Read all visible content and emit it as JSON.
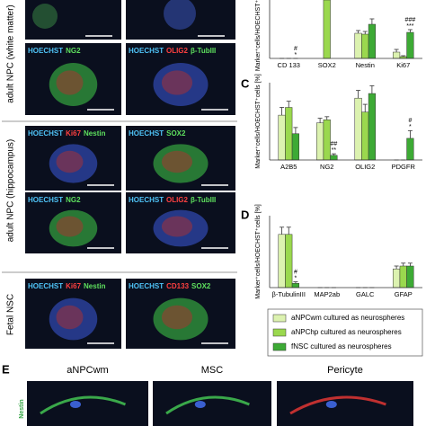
{
  "figure": {
    "panel_letters": {
      "c": "C",
      "d": "D",
      "e": "E"
    },
    "row_groups": [
      "adult NPC (white matter)",
      "adult NPC (hippocampus)",
      "Fetal NSC"
    ],
    "image_rows": [
      [
        [
          {
            "text": "HOECHST",
            "color": "#4fc3f7"
          },
          {
            "text": "NG2",
            "color": "#5ee05e"
          }
        ],
        [
          {
            "text": "HOECHST",
            "color": "#4fc3f7"
          },
          {
            "text": "OLIG2",
            "color": "#ff4040"
          },
          {
            "text": "β-TubIII",
            "color": "#5ee05e"
          }
        ]
      ],
      [
        [
          {
            "text": "HOECHST",
            "color": "#4fc3f7"
          },
          {
            "text": "Ki67",
            "color": "#ff4040"
          },
          {
            "text": "Nestin",
            "color": "#5ee05e"
          }
        ],
        [
          {
            "text": "HOECHST",
            "color": "#4fc3f7"
          },
          {
            "text": "SOX2",
            "color": "#5ee05e"
          }
        ]
      ],
      [
        [
          {
            "text": "HOECHST",
            "color": "#4fc3f7"
          },
          {
            "text": "NG2",
            "color": "#5ee05e"
          }
        ],
        [
          {
            "text": "HOECHST",
            "color": "#4fc3f7"
          },
          {
            "text": "OLIG2",
            "color": "#ff4040"
          },
          {
            "text": "β-TubIII",
            "color": "#5ee05e"
          }
        ]
      ],
      [
        [
          {
            "text": "HOECHST",
            "color": "#4fc3f7"
          },
          {
            "text": "Ki67",
            "color": "#ff4040"
          },
          {
            "text": "Nestin",
            "color": "#5ee05e"
          }
        ],
        [
          {
            "text": "HOECHST",
            "color": "#4fc3f7"
          },
          {
            "text": "CD133",
            "color": "#ff4040"
          },
          {
            "text": "SOX2",
            "color": "#5ee05e"
          }
        ]
      ]
    ],
    "bottom_titles": [
      "aNPCwm",
      "MSC",
      "Pericyte"
    ],
    "bottom_side_label": "Nestin"
  },
  "chart_data": [
    {
      "type": "bar",
      "y_label": "Marker⁺cells/HOECHST⁺cells",
      "categories": [
        "CD 133",
        "SOX2",
        "Nestin",
        "Ki67"
      ],
      "ylim": [
        0,
        65
      ],
      "series": [
        {
          "color": "#dcf2b0",
          "values": [
            0,
            null,
            28,
            7
          ],
          "errors": [
            0,
            null,
            3,
            3
          ]
        },
        {
          "color": "#9ad84e",
          "values": [
            0,
            65,
            27,
            2
          ],
          "errors": [
            0,
            null,
            3,
            1
          ]
        },
        {
          "color": "#3daa35",
          "values": [
            0,
            null,
            38,
            29
          ],
          "errors": [
            0,
            null,
            6,
            3
          ],
          "significance": [
            [
              "#",
              "*"
            ],
            null,
            null,
            [
              "###",
              "***"
            ]
          ]
        }
      ]
    },
    {
      "type": "bar",
      "y_label": "Marker⁺cells/HOECHST⁺cells [%]",
      "categories": [
        "A2B5",
        "NG2",
        "OLIG2",
        "PDGFR"
      ],
      "ylim": [
        0,
        50
      ],
      "series": [
        {
          "color": "#dcf2b0",
          "values": [
            29,
            24,
            40,
            0
          ],
          "errors": [
            5,
            3,
            5,
            0
          ]
        },
        {
          "color": "#9ad84e",
          "values": [
            34,
            26,
            31,
            0
          ],
          "errors": [
            4,
            2,
            5,
            0
          ]
        },
        {
          "color": "#3daa35",
          "values": [
            17,
            3,
            43,
            14
          ],
          "errors": [
            4,
            1,
            5,
            5
          ],
          "significance": [
            null,
            [
              "##",
              "**"
            ],
            null,
            [
              "#",
              "*"
            ]
          ]
        }
      ]
    },
    {
      "type": "bar",
      "y_label": "Marker⁺cells/HOECHST⁺cells [%]",
      "categories": [
        "β-TubulinIII",
        "MAP2ab",
        "GALC",
        "GFAP"
      ],
      "ylim": [
        0,
        50
      ],
      "series": [
        {
          "name": "aNPCwm cultured as neurospheres",
          "color": "#dcf2b0",
          "values": [
            37,
            0,
            0,
            13
          ],
          "errors": [
            5,
            0,
            0,
            2
          ]
        },
        {
          "name": "aNPChp cultured as neurospheres",
          "color": "#9ad84e",
          "values": [
            37,
            0,
            0,
            15
          ],
          "errors": [
            5,
            0,
            0,
            2
          ]
        },
        {
          "name": "fNSC cultured as neurospheres",
          "color": "#3daa35",
          "values": [
            3,
            0,
            0,
            15
          ],
          "errors": [
            1,
            0,
            0,
            2
          ],
          "significance": [
            [
              "#",
              "*"
            ],
            null,
            null,
            null
          ]
        }
      ]
    }
  ]
}
